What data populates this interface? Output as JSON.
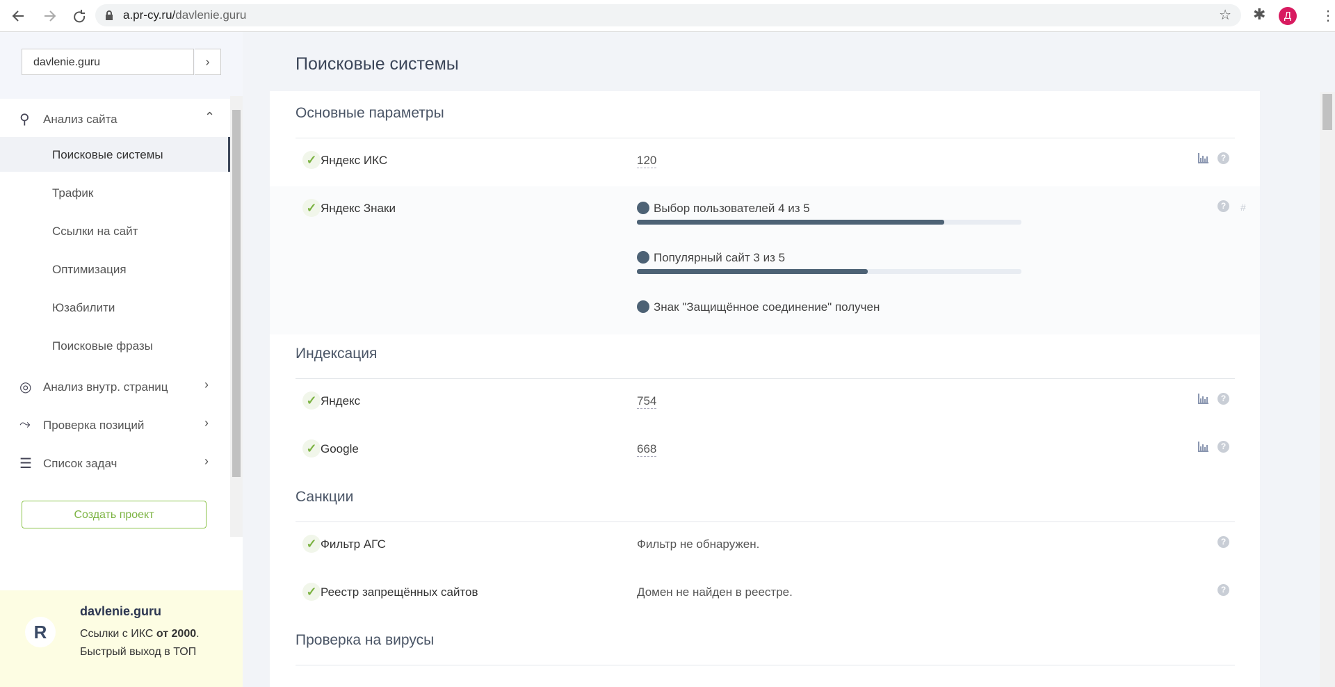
{
  "browser": {
    "url_host": "a.pr-cy.ru/",
    "url_path": "davlenie.guru",
    "avatar": "Д"
  },
  "sidebar": {
    "search_value": "davlenie.guru",
    "search_button": "›",
    "menu": [
      {
        "label": "Анализ сайта",
        "children": [
          "Поисковые системы",
          "Трафик",
          "Ссылки на сайт",
          "Оптимизация",
          "Юзабилити",
          "Поисковые фразы"
        ]
      },
      {
        "label": "Анализ внутр. страниц"
      },
      {
        "label": "Проверка позиций"
      },
      {
        "label": "Список задач"
      }
    ],
    "create_button": "Создать проект",
    "promo": {
      "title": "davlenie.guru",
      "line1": "Ссылки с ИКС ",
      "line1_bold": "от 2000",
      "line1_end": ".",
      "line2": "Быстрый выход в ТОП"
    }
  },
  "main": {
    "title": "Поисковые системы",
    "sections": [
      {
        "title": "Основные параметры",
        "rows": [
          {
            "label": "Яндекс ИКС",
            "value": 120
          },
          {
            "label": "Яндекс Знаки",
            "badges": [
              {
                "label": "Выбор пользователей",
                "value": 4,
                "of": "из",
                "max": 5
              },
              {
                "label": "Популярный сайт",
                "value": 3,
                "of": "из",
                "max": 5
              },
              {
                "text": "Знак \"Защищённое соединение\" получен"
              }
            ]
          }
        ]
      },
      {
        "title": "Индексация",
        "rows": [
          {
            "label": "Яндекс",
            "value": 754
          },
          {
            "label": "Google",
            "value": 668
          }
        ]
      },
      {
        "title": "Санкции",
        "rows": [
          {
            "label": "Фильтр АГС",
            "value": "Фильтр не обнаружен."
          },
          {
            "label": "Реестр запрещённых сайтов",
            "value": "Домен не найден в реестре."
          }
        ]
      },
      {
        "title": "Проверка на вирусы",
        "rows": []
      }
    ]
  }
}
